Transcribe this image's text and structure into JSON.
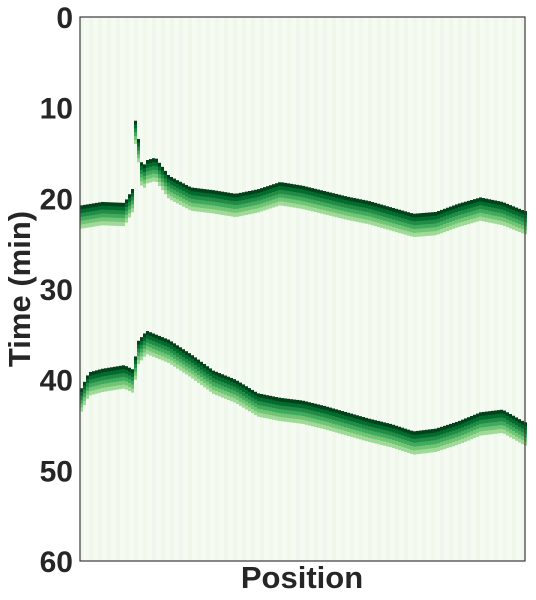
{
  "chart_data": {
    "type": "heatmap",
    "title": "",
    "xlabel": "Position",
    "ylabel": "Time (min)",
    "ylim": [
      0,
      60
    ],
    "y_inverted": true,
    "y_ticks": [
      0,
      10,
      20,
      30,
      40,
      50,
      60
    ],
    "x_ticks": [],
    "grid": false,
    "colormap": "Greens",
    "background_color": "#f5fbf2",
    "band_colors": [
      "#00441b",
      "#006d2c",
      "#238b45",
      "#41ab5d",
      "#74c476",
      "#a1d99b"
    ],
    "series": [
      {
        "name": "",
        "position": [
          0.0,
          0.05,
          0.1,
          0.12,
          0.125,
          0.14,
          0.15,
          0.17,
          0.2,
          0.25,
          0.3,
          0.35,
          0.4,
          0.45,
          0.5,
          0.55,
          0.6,
          0.65,
          0.7,
          0.75,
          0.8,
          0.85,
          0.9,
          0.95,
          1.0
        ],
        "time_min": [
          20.8,
          20.4,
          20.5,
          18.8,
          11.0,
          16.7,
          15.8,
          15.5,
          17.5,
          18.8,
          19.1,
          19.5,
          19.0,
          18.2,
          18.6,
          19.2,
          19.8,
          20.3,
          21.0,
          21.7,
          21.5,
          20.6,
          19.9,
          20.4,
          21.4
        ]
      },
      {
        "name": "",
        "position": [
          0.0,
          0.02,
          0.05,
          0.1,
          0.12,
          0.13,
          0.15,
          0.2,
          0.25,
          0.3,
          0.35,
          0.4,
          0.45,
          0.5,
          0.55,
          0.6,
          0.65,
          0.7,
          0.75,
          0.8,
          0.85,
          0.9,
          0.95,
          1.0
        ],
        "time_min": [
          41.3,
          39.2,
          38.8,
          38.4,
          38.9,
          35.8,
          34.6,
          35.6,
          37.2,
          39.0,
          40.0,
          41.5,
          42.0,
          42.3,
          42.9,
          43.6,
          44.3,
          44.9,
          45.7,
          45.4,
          44.6,
          43.6,
          43.3,
          44.7
        ]
      }
    ]
  }
}
